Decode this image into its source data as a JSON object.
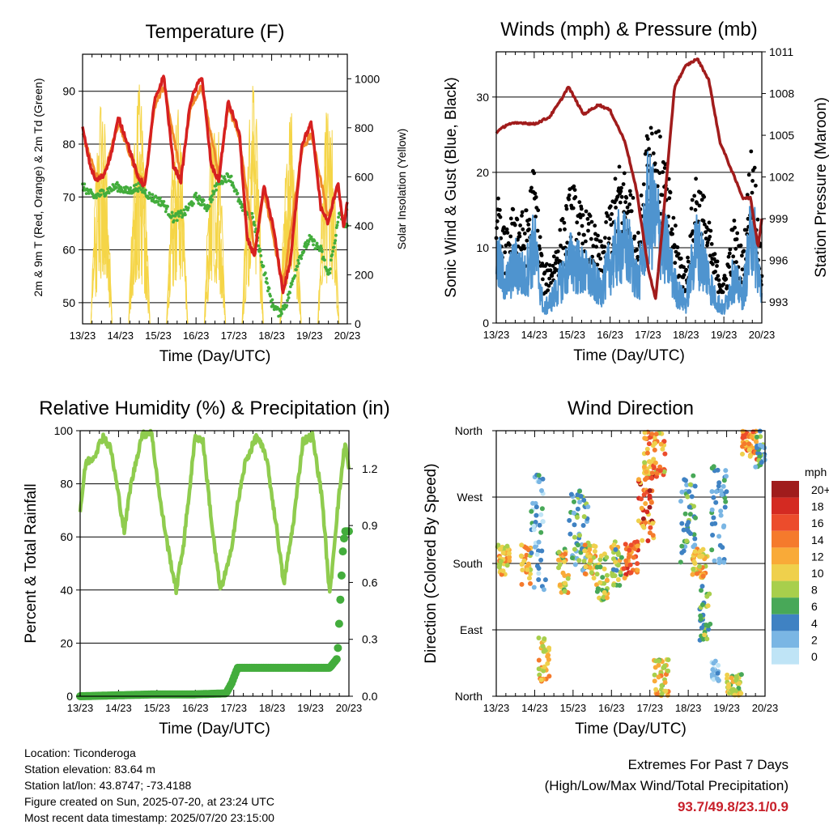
{
  "info": {
    "location": "Location: Ticonderoga",
    "elevation": "Station elevation: 83.64 m",
    "latlon": "Station lat/lon: 43.8747; -73.4188",
    "created": "Figure created on Sun, 2025-07-20, at 23:24 UTC",
    "recent": "Most recent data timestamp: 2025/07/20 23:15:00"
  },
  "extremes": {
    "title": "Extremes For Past 7 Days",
    "subtitle": "(High/Low/Max Wind/Total Precipitation)",
    "values": "93.7/49.8/23.1/0.9"
  },
  "colors": {
    "temp2m": "#d62020",
    "temp9m": "#f08a2a",
    "dewpoint": "#43ad3c",
    "solar": "#f5d547",
    "gust": "#000000",
    "wind": "#4f94cf",
    "pressure": "#a11c1c",
    "rh": "#8fcc4e",
    "precip": "#43ad3c"
  },
  "chart_data": [
    {
      "type": "line",
      "title": "Temperature (F)",
      "xlabel": "Time (Day/UTC)",
      "ylabel": "2m & 9m T (Red, Orange) & 2m Td (Green)",
      "y2label": "Solar Insolation (Yellow)",
      "x_ticks": [
        "13/23",
        "14/23",
        "15/23",
        "16/23",
        "17/23",
        "18/23",
        "19/23",
        "20/23"
      ],
      "xlim": [
        0,
        7
      ],
      "ylim": [
        46,
        97
      ],
      "y_ticks": [
        50,
        60,
        70,
        80,
        90
      ],
      "y2lim": [
        0,
        1100
      ],
      "y2_ticks": [
        0,
        200,
        400,
        600,
        800,
        1000
      ],
      "grid": true,
      "series": [
        {
          "name": "2m T",
          "axis": "left",
          "x": [
            0,
            0.2,
            0.35,
            0.55,
            0.75,
            0.95,
            1.2,
            1.45,
            1.65,
            1.9,
            2.15,
            2.4,
            2.6,
            2.85,
            3.15,
            3.4,
            3.6,
            3.85,
            4.15,
            4.35,
            4.55,
            4.8,
            5.05,
            5.3,
            5.5,
            5.8,
            6.05,
            6.3,
            6.5,
            6.75,
            6.9,
            7
          ],
          "values": [
            83,
            76,
            73,
            74,
            78,
            85,
            80,
            74,
            72,
            88,
            93,
            76,
            73,
            88,
            93,
            76,
            73,
            88,
            82,
            62,
            59,
            72,
            64,
            52,
            58,
            80,
            84,
            68,
            65,
            73,
            64,
            69
          ]
        },
        {
          "name": "9m T",
          "axis": "left",
          "x": [
            0,
            0.35,
            0.55,
            0.95,
            1.45,
            1.65,
            1.9,
            2.15,
            2.6,
            2.85,
            3.15,
            3.6,
            3.85,
            4.15,
            4.55,
            4.8,
            5.3,
            5.8,
            6.05,
            6.5,
            6.75,
            6.9,
            7
          ],
          "values": [
            82,
            74,
            74,
            84,
            74,
            73,
            87,
            91,
            74,
            87,
            91,
            74,
            87,
            81,
            60,
            71,
            53,
            79,
            82,
            66,
            72,
            65,
            68
          ]
        },
        {
          "name": "2m Td",
          "axis": "left",
          "x": [
            0,
            0.3,
            0.6,
            0.9,
            1.2,
            1.5,
            1.8,
            2.1,
            2.4,
            2.7,
            3.0,
            3.3,
            3.6,
            3.9,
            4.2,
            4.5,
            4.8,
            5.0,
            5.2,
            5.4,
            5.7,
            6.0,
            6.3,
            6.5,
            6.8,
            7
          ],
          "values": [
            72,
            70,
            71,
            72,
            71,
            72,
            70,
            69,
            66,
            67,
            70,
            68,
            73,
            74,
            68,
            66,
            56,
            50,
            48,
            50,
            58,
            62,
            60,
            55,
            67,
            64
          ]
        },
        {
          "name": "Solar Insolation",
          "axis": "right",
          "peaks": [
            0.5,
            1.5,
            2.5,
            3.5,
            4.5,
            5.5,
            6.5,
            6.9
          ],
          "peak_values": [
            950,
            980,
            900,
            950,
            1000,
            900,
            950,
            600
          ]
        }
      ]
    },
    {
      "type": "line",
      "title": "Winds (mph) & Pressure (mb)",
      "xlabel": "Time (Day/UTC)",
      "ylabel": "Sonic Wind & Gust (Blue, Black)",
      "y2label": "Station Pressure (Maroon)",
      "x_ticks": [
        "13/23",
        "14/23",
        "15/23",
        "16/23",
        "17/23",
        "18/23",
        "19/23",
        "20/23"
      ],
      "xlim": [
        0,
        7
      ],
      "ylim": [
        0,
        36
      ],
      "y_ticks": [
        0,
        10,
        20,
        30
      ],
      "y2lim": [
        991.5,
        1011
      ],
      "y2_ticks": [
        993,
        996,
        999,
        1002,
        1005,
        1008,
        1011
      ],
      "grid": true,
      "series": [
        {
          "name": "Gust",
          "axis": "left",
          "x": [
            0,
            0.25,
            0.5,
            0.75,
            1.0,
            1.25,
            1.5,
            1.75,
            2.0,
            2.25,
            2.5,
            2.75,
            3.0,
            3.25,
            3.5,
            3.75,
            4.0,
            4.25,
            4.5,
            4.75,
            5.0,
            5.25,
            5.5,
            5.75,
            6.0,
            6.25,
            6.5,
            6.75,
            7
          ],
          "values": [
            15,
            10,
            14,
            12,
            18,
            6,
            8,
            12,
            16,
            13,
            12,
            9,
            14,
            18,
            17,
            10,
            26,
            22,
            18,
            10,
            6,
            18,
            14,
            8,
            5,
            12,
            8,
            22,
            6
          ]
        },
        {
          "name": "Wind",
          "axis": "left",
          "x": [
            0,
            0.25,
            0.5,
            0.75,
            1.0,
            1.25,
            1.5,
            1.75,
            2.0,
            2.25,
            2.5,
            2.75,
            3.0,
            3.25,
            3.5,
            3.75,
            4.0,
            4.25,
            4.5,
            4.75,
            5.0,
            5.25,
            5.5,
            5.75,
            6.0,
            6.25,
            6.5,
            6.75,
            7
          ],
          "values": [
            10,
            6,
            9,
            7,
            12,
            2,
            4,
            7,
            10,
            8,
            7,
            5,
            9,
            12,
            11,
            6,
            18,
            15,
            11,
            5,
            3,
            12,
            9,
            4,
            2,
            7,
            4,
            15,
            4
          ]
        },
        {
          "name": "Pressure",
          "axis": "right",
          "x": [
            0,
            0.3,
            0.7,
            1.0,
            1.4,
            1.7,
            1.9,
            2.3,
            2.7,
            3.0,
            3.4,
            3.7,
            4.0,
            4.2,
            4.4,
            4.7,
            5.0,
            5.3,
            5.6,
            5.9,
            6.2,
            6.5,
            6.7,
            6.9,
            7
          ],
          "values": [
            1005.2,
            1005.8,
            1005.9,
            1005.8,
            1006.3,
            1007.5,
            1008.5,
            1006.5,
            1007.2,
            1006.8,
            1004.5,
            1001.0,
            995.5,
            993.2,
            999.0,
            1008.5,
            1010.0,
            1010.5,
            1009.0,
            1004.5,
            1002.5,
            1000.5,
            1000.5,
            997.0,
            999.0
          ]
        }
      ]
    },
    {
      "type": "line",
      "title": "Relative Humidity (%) & Precipitation (in)",
      "xlabel": "Time (Day/UTC)",
      "ylabel": "Percent & Total Rainfall",
      "x_ticks": [
        "13/23",
        "14/23",
        "15/23",
        "16/23",
        "17/23",
        "18/23",
        "19/23",
        "20/23"
      ],
      "xlim": [
        0,
        7
      ],
      "ylim": [
        0,
        100
      ],
      "y_ticks": [
        0,
        20,
        40,
        60,
        80,
        100
      ],
      "y2lim": [
        0,
        1.4
      ],
      "y2_ticks": [
        "0.0",
        "0.3",
        "0.6",
        "0.9",
        "1.2"
      ],
      "grid": true,
      "series": [
        {
          "name": "RH",
          "axis": "left",
          "x": [
            0,
            0.15,
            0.35,
            0.6,
            0.8,
            0.95,
            1.15,
            1.3,
            1.6,
            1.85,
            2.1,
            2.3,
            2.5,
            2.7,
            3.0,
            3.2,
            3.45,
            3.65,
            3.9,
            4.1,
            4.3,
            4.6,
            4.85,
            5.15,
            5.3,
            5.55,
            5.8,
            6.05,
            6.3,
            6.5,
            6.7,
            6.9,
            7
          ],
          "values": [
            70,
            88,
            90,
            98,
            93,
            80,
            62,
            78,
            98,
            100,
            72,
            55,
            40,
            58,
            98,
            96,
            62,
            40,
            52,
            72,
            88,
            98,
            90,
            60,
            42,
            65,
            96,
            98,
            75,
            38,
            70,
            96,
            85
          ]
        },
        {
          "name": "Total Rainfall",
          "axis": "right",
          "x": [
            0,
            1,
            2,
            3,
            3.8,
            3.95,
            4.1,
            4.5,
            5,
            5.5,
            6,
            6.5,
            6.7,
            6.75,
            6.8,
            6.85,
            6.9,
            7
          ],
          "values": [
            0,
            0.005,
            0.01,
            0.01,
            0.015,
            0.07,
            0.15,
            0.15,
            0.15,
            0.15,
            0.15,
            0.15,
            0.2,
            0.4,
            0.6,
            0.8,
            0.87,
            0.87
          ]
        }
      ]
    },
    {
      "type": "scatter",
      "title": "Wind Direction",
      "xlabel": "Time (Day/UTC)",
      "ylabel": "Direction (Colored By Speed)",
      "x_ticks": [
        "13/23",
        "14/23",
        "15/23",
        "16/23",
        "17/23",
        "18/23",
        "19/23",
        "20/23"
      ],
      "xlim": [
        0,
        7
      ],
      "y_labels": [
        "North",
        "East",
        "South",
        "West",
        "North"
      ],
      "ylim": [
        0,
        360
      ],
      "grid": true,
      "colorbar": {
        "title": "mph",
        "labels": [
          "20+",
          "18",
          "16",
          "14",
          "12",
          "10",
          "8",
          "6",
          "4",
          "2",
          "0"
        ],
        "colors": [
          "#a01c1c",
          "#d42a22",
          "#ec4c2c",
          "#f57a2c",
          "#f9aa38",
          "#efd04c",
          "#a8cf4c",
          "#48a858",
          "#3f82c3",
          "#7ab6e4",
          "#bfe4f6"
        ]
      },
      "clusters": [
        {
          "x": [
            0.0,
            0.35
          ],
          "dir": [
            165,
            205
          ],
          "speed": [
            8,
            14
          ]
        },
        {
          "x": [
            0.65,
            0.9
          ],
          "dir": [
            150,
            205
          ],
          "speed": [
            8,
            15
          ]
        },
        {
          "x": [
            0.9,
            1.3
          ],
          "dir": [
            140,
            300
          ],
          "speed": [
            0,
            6
          ]
        },
        {
          "x": [
            1.1,
            1.4
          ],
          "dir": [
            20,
            80
          ],
          "speed": [
            8,
            14
          ]
        },
        {
          "x": [
            1.6,
            1.9
          ],
          "dir": [
            140,
            200
          ],
          "speed": [
            6,
            14
          ]
        },
        {
          "x": [
            1.9,
            2.4
          ],
          "dir": [
            170,
            280
          ],
          "speed": [
            2,
            8
          ]
        },
        {
          "x": [
            2.3,
            2.6
          ],
          "dir": [
            160,
            205
          ],
          "speed": [
            8,
            14
          ]
        },
        {
          "x": [
            2.6,
            2.9
          ],
          "dir": [
            130,
            195
          ],
          "speed": [
            6,
            13
          ]
        },
        {
          "x": [
            3.0,
            3.3
          ],
          "dir": [
            150,
            210
          ],
          "speed": [
            4,
            12
          ]
        },
        {
          "x": [
            3.3,
            3.7
          ],
          "dir": [
            160,
            210
          ],
          "speed": [
            10,
            19
          ]
        },
        {
          "x": [
            3.7,
            4.1
          ],
          "dir": [
            210,
            300
          ],
          "speed": [
            10,
            20
          ]
        },
        {
          "x": [
            3.85,
            4.4
          ],
          "dir": [
            295,
            360
          ],
          "speed": [
            8,
            16
          ]
        },
        {
          "x": [
            4.1,
            4.5
          ],
          "dir": [
            0,
            50
          ],
          "speed": [
            6,
            14
          ]
        },
        {
          "x": [
            4.8,
            5.2
          ],
          "dir": [
            180,
            300
          ],
          "speed": [
            2,
            8
          ]
        },
        {
          "x": [
            5.1,
            5.5
          ],
          "dir": [
            160,
            200
          ],
          "speed": [
            8,
            14
          ]
        },
        {
          "x": [
            5.3,
            5.6
          ],
          "dir": [
            70,
            150
          ],
          "speed": [
            4,
            10
          ]
        },
        {
          "x": [
            5.6,
            6.0
          ],
          "dir": [
            180,
            320
          ],
          "speed": [
            2,
            6
          ]
        },
        {
          "x": [
            5.6,
            5.8
          ],
          "dir": [
            20,
            50
          ],
          "speed": [
            0,
            4
          ]
        },
        {
          "x": [
            6.0,
            6.4
          ],
          "dir": [
            0,
            30
          ],
          "speed": [
            6,
            12
          ]
        },
        {
          "x": [
            6.4,
            6.8
          ],
          "dir": [
            320,
            360
          ],
          "speed": [
            10,
            16
          ]
        },
        {
          "x": [
            6.75,
            7.0
          ],
          "dir": [
            310,
            360
          ],
          "speed": [
            2,
            8
          ]
        }
      ]
    }
  ]
}
